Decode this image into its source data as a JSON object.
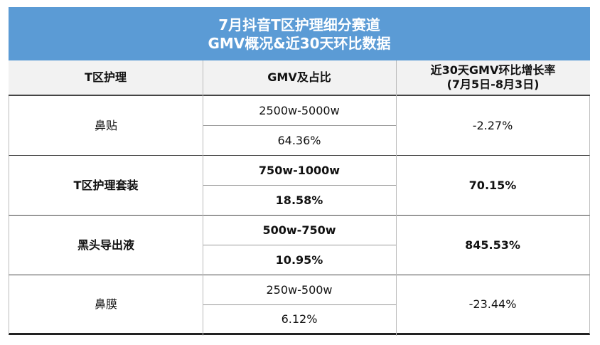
{
  "header": {
    "title_lines": [
      "7月抖音T区护理细分赛道",
      "GMV概况&近30天环比数据"
    ]
  },
  "table": {
    "columns": [
      "T区护理",
      "GMV及占比",
      [
        "近30天GMV环比增长率",
        "(7月5日-8月3日)"
      ]
    ],
    "rows": [
      [
        "鼻贴",
        "2500w-5000w",
        "64.36%",
        "-2.27%"
      ],
      [
        "T区护理套装",
        "750w-1000w",
        "18.58%",
        "70.15%"
      ],
      [
        "黑头导出液",
        "500w-750w",
        "10.95%",
        "845.53%"
      ],
      [
        "鼻膜",
        "250w-500w",
        "6.12%",
        "-23.44%"
      ]
    ]
  }
}
